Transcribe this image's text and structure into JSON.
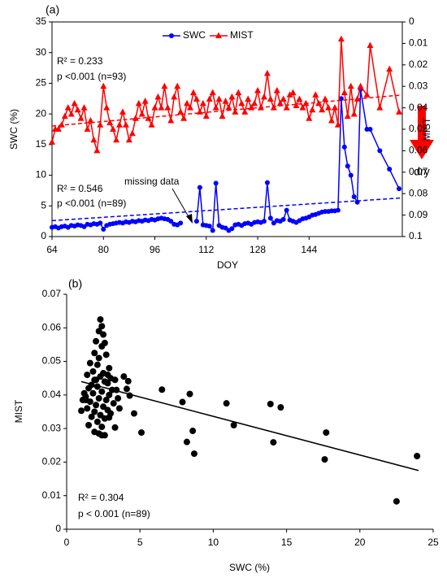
{
  "chart_data": [
    {
      "type": "line",
      "y_label": "SWC (%)",
      "y2_label": "MIST",
      "x_label": "DOY",
      "xlim": [
        64,
        173
      ],
      "xticks": [
        64,
        80,
        96,
        112,
        128,
        144
      ],
      "ylim": [
        0,
        35
      ],
      "yticks": [
        0,
        5,
        10,
        15,
        20,
        25,
        30,
        35
      ],
      "y2lim": [
        0,
        0.1
      ],
      "y2ticks": [
        0,
        0.01,
        0.02,
        0.03,
        0.04,
        0.05,
        0.06,
        0.07,
        0.08,
        0.09,
        0.1
      ],
      "y2_inverted": true,
      "grid": false,
      "legend": "top",
      "x": [
        64,
        65,
        66,
        67,
        68,
        69,
        70,
        71,
        72,
        73,
        74,
        75,
        76,
        77,
        78,
        79,
        80,
        81,
        82,
        83,
        84,
        85,
        86,
        87,
        88,
        89,
        90,
        91,
        92,
        93,
        94,
        95,
        96,
        97,
        98,
        99,
        100,
        101,
        102,
        103,
        104,
        105,
        106,
        107,
        108,
        109,
        110,
        111,
        112,
        113,
        114,
        115,
        116,
        117,
        118,
        119,
        120,
        121,
        122,
        123,
        124,
        125,
        126,
        127,
        128,
        129,
        130,
        131,
        132,
        133,
        134,
        135,
        136,
        137,
        138,
        139,
        140,
        141,
        142,
        143,
        144,
        145,
        146,
        147,
        148,
        149,
        150,
        151,
        152,
        153,
        154,
        155,
        156,
        157,
        158,
        159,
        160,
        162,
        163,
        166,
        169,
        172
      ],
      "series": [
        {
          "name": "SWC",
          "color": "#0000ff",
          "marker": "circle",
          "values": [
            1.5,
            1.6,
            1.4,
            1.6,
            1.7,
            1.5,
            1.8,
            1.7,
            1.9,
            1.8,
            1.6,
            2.0,
            1.9,
            2.1,
            2.0,
            2.2,
            1.2,
            1.8,
            2.0,
            2.1,
            2.2,
            2.3,
            2.2,
            2.4,
            2.3,
            2.5,
            2.4,
            2.6,
            2.5,
            2.7,
            2.6,
            2.8,
            2.7,
            2.9,
            3.0,
            2.9,
            2.8,
            2.5,
            2.0,
            1.9,
            2.2,
            null,
            null,
            null,
            null,
            2.5,
            8.0,
            1.9,
            1.8,
            1.7,
            1.0,
            8.7,
            1.8,
            1.5,
            1.4,
            1.0,
            1.3,
            1.9,
            2.0,
            1.8,
            2.1,
            2.2,
            2.0,
            2.3,
            2.4,
            2.3,
            2.5,
            8.8,
            3.0,
            2.2,
            2.6,
            2.5,
            2.8,
            4.3,
            2.7,
            2.5,
            2.3,
            2.6,
            2.9,
            3.0,
            3.2,
            3.5,
            3.6,
            3.8,
            4.0,
            4.1,
            4.1,
            4.2,
            4.2,
            4.3,
            22.5,
            14.6,
            11.5,
            10.0,
            6.5,
            5.6,
            24.0,
            17.5,
            17.5,
            14.0,
            11.0,
            7.8
          ]
        },
        {
          "name": "MIST",
          "color": "#ff0000",
          "marker": "triangle",
          "axis": "y2",
          "values": [
            0.056,
            0.05,
            0.05,
            0.048,
            0.044,
            0.04,
            0.043,
            0.038,
            0.041,
            0.045,
            0.04,
            0.05,
            0.046,
            0.055,
            0.06,
            0.048,
            0.03,
            0.04,
            0.047,
            0.05,
            0.055,
            0.048,
            0.042,
            0.048,
            0.055,
            0.052,
            0.045,
            0.038,
            0.043,
            0.037,
            0.045,
            0.048,
            0.04,
            0.035,
            0.04,
            0.03,
            0.04,
            0.046,
            0.035,
            0.03,
            0.042,
            0.045,
            0.038,
            0.04,
            0.033,
            0.036,
            0.042,
            0.038,
            0.044,
            0.036,
            0.033,
            0.04,
            0.036,
            0.044,
            0.037,
            0.04,
            0.035,
            0.042,
            0.033,
            0.038,
            0.042,
            0.036,
            0.04,
            0.038,
            0.032,
            0.04,
            0.035,
            0.024,
            0.036,
            0.04,
            0.032,
            0.038,
            0.036,
            0.04,
            0.034,
            0.033,
            0.039,
            0.036,
            0.04,
            0.038,
            0.045,
            0.041,
            0.034,
            0.038,
            0.041,
            0.036,
            0.04,
            0.046,
            0.04,
            0.048,
            0.008,
            0.033,
            0.044,
            0.03,
            0.043,
            0.036,
            0.03,
            0.034,
            0.011,
            0.04,
            0.022,
            0.042
          ]
        }
      ],
      "trend_lines": [
        {
          "color": "#0000ff",
          "x": [
            64,
            173
          ],
          "y": [
            2.6,
            6.3
          ]
        },
        {
          "color": "#ff0000",
          "axis": "y2",
          "x": [
            64,
            173
          ],
          "y": [
            0.0485,
            0.034
          ]
        }
      ],
      "annotations": [
        "(a)",
        "R² = 0.233",
        "p <0.001 (n=93)",
        "R² = 0.546",
        "p <0.001 (n=89)",
        "missing data",
        "dry"
      ]
    },
    {
      "type": "scatter",
      "y_label": "MIST",
      "x_label": "SWC (%)",
      "xlim": [
        0,
        25
      ],
      "xticks": [
        0,
        5,
        10,
        15,
        20,
        25
      ],
      "ylim": [
        0,
        0.07
      ],
      "yticks": [
        0,
        0.01,
        0.02,
        0.03,
        0.04,
        0.05,
        0.06,
        0.07
      ],
      "grid": false,
      "color": "#000000",
      "x": [
        22.5,
        23.9,
        17.7,
        17.6,
        14.6,
        13.9,
        14.1,
        11.4,
        10.9,
        8.7,
        8.6,
        8.4,
        8.2,
        7.9,
        6.5,
        5.1,
        4.6,
        4.3,
        4.1,
        3.9,
        4.2,
        3.6,
        3.3,
        2.9,
        1.0,
        1.2,
        1.3,
        2.3,
        2.4,
        2.2,
        2.5,
        2.0,
        2.6,
        2.4,
        1.9,
        2.7,
        2.2,
        1.6,
        2.1,
        2.9,
        1.8,
        2.5,
        1.4,
        2.3,
        3.0,
        1.9,
        2.6,
        1.7,
        2.8,
        2.1,
        1.5,
        3.1,
        2.4,
        1.8,
        2.9,
        1.3,
        2.2,
        2.7,
        1.6,
        3.2,
        2.0,
        2.5,
        1.4,
        2.8,
        1.9,
        3.0,
        2.3,
        1.7,
        2.6,
        2.1,
        1.5,
        2.4,
        1.9,
        2.2,
        2.6,
        2.4,
        3.4,
        3.3,
        3.5,
        1.1,
        2.0,
        2.8
      ],
      "y": [
        0.0083,
        0.0218,
        0.0288,
        0.0208,
        0.0363,
        0.0373,
        0.0259,
        0.031,
        0.0375,
        0.0225,
        0.0293,
        0.0403,
        0.026,
        0.0379,
        0.0416,
        0.0288,
        0.0345,
        0.0398,
        0.0418,
        0.0455,
        0.0441,
        0.036,
        0.0303,
        0.0333,
        0.0353,
        0.0405,
        0.0385,
        0.0625,
        0.0605,
        0.059,
        0.058,
        0.056,
        0.0555,
        0.0545,
        0.0525,
        0.052,
        0.051,
        0.0495,
        0.049,
        0.048,
        0.047,
        0.0465,
        0.046,
        0.0455,
        0.045,
        0.0445,
        0.044,
        0.043,
        0.0435,
        0.0425,
        0.042,
        0.0415,
        0.041,
        0.0405,
        0.04,
        0.0395,
        0.039,
        0.0385,
        0.038,
        0.0375,
        0.037,
        0.0365,
        0.036,
        0.0355,
        0.035,
        0.0345,
        0.034,
        0.0335,
        0.033,
        0.032,
        0.031,
        0.0305,
        0.029,
        0.0285,
        0.028,
        0.028,
        0.0415,
        0.0445,
        0.039,
        0.0385,
        0.0445,
        0.046
      ],
      "trend_lines": [
        {
          "color": "#000000",
          "x": [
            1,
            24
          ],
          "y": [
            0.044,
            0.0175
          ]
        }
      ],
      "annotations": [
        "(b)",
        "R² = 0.304",
        "p < 0.001 (n=89)"
      ]
    }
  ]
}
